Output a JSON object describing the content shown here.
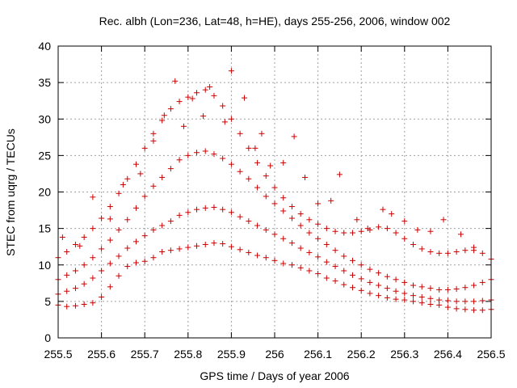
{
  "chart_data": {
    "type": "scatter",
    "title": "Rec. albh (Lon=236, Lat=48, h=HE), days 255-256, 2006, window 002",
    "xlabel": "GPS time / Days of year 2006",
    "ylabel": "STEC from uqrg / TECUs",
    "xlim": [
      255.5,
      256.5
    ],
    "ylim": [
      0,
      40
    ],
    "x_ticks": [
      255.5,
      255.6,
      255.7,
      255.8,
      255.9,
      256,
      256.1,
      256.2,
      256.3,
      256.4,
      256.5
    ],
    "x_tick_labels": [
      "255.5",
      "255.6",
      "255.7",
      "255.8",
      "255.9",
      "256",
      "256.1",
      "256.2",
      "256.3",
      "256.4",
      "256.5"
    ],
    "y_ticks": [
      0,
      5,
      10,
      15,
      20,
      25,
      30,
      35,
      40
    ],
    "y_tick_labels": [
      "0",
      "5",
      "10",
      "15",
      "20",
      "25",
      "30",
      "35",
      "40"
    ],
    "grid": true,
    "marker": "+",
    "color": "#cc0000",
    "series": [
      {
        "x": [
          255.5,
          255.52,
          255.54,
          255.56,
          255.58,
          255.6,
          255.62,
          255.64,
          255.66,
          255.68,
          255.7,
          255.72,
          255.74,
          255.76,
          255.78,
          255.8,
          255.82,
          255.84,
          255.86,
          255.88,
          255.9,
          255.92,
          255.94,
          255.96,
          255.98,
          256.0,
          256.02,
          256.04,
          256.06,
          256.08,
          256.1,
          256.12,
          256.14,
          256.16,
          256.18,
          256.2,
          256.22,
          256.24,
          256.26,
          256.28,
          256.3,
          256.32,
          256.34,
          256.36,
          256.38,
          256.4,
          256.42,
          256.44,
          256.46,
          256.48,
          256.5
        ],
        "y": [
          4.5,
          4.3,
          4.4,
          4.6,
          4.8,
          5.6,
          7.0,
          8.5,
          9.8,
          10.3,
          10.5,
          11.0,
          11.8,
          12.0,
          12.2,
          12.4,
          12.6,
          12.8,
          13.0,
          12.9,
          12.5,
          12.1,
          11.7,
          11.3,
          11.0,
          10.6,
          10.2,
          10.0,
          9.6,
          9.2,
          8.8,
          8.2,
          7.8,
          7.3,
          6.9,
          6.5,
          6.1,
          5.8,
          5.5,
          5.3,
          5.2,
          5.0,
          4.8,
          4.6,
          4.5,
          4.2,
          4.0,
          3.9,
          3.8,
          3.8,
          3.9
        ]
      },
      {
        "x": [
          255.5,
          255.52,
          255.54,
          255.56,
          255.58,
          255.6,
          255.62,
          255.64,
          255.66,
          255.68,
          255.7,
          255.72,
          255.74,
          255.76,
          255.78,
          255.8,
          255.82,
          255.84,
          255.86,
          255.88,
          255.9,
          255.92,
          255.94,
          255.96,
          255.98,
          256.0,
          256.02,
          256.04,
          256.06,
          256.08,
          256.1,
          256.12,
          256.14,
          256.16,
          256.18,
          256.2,
          256.22,
          256.24,
          256.26,
          256.28,
          256.3,
          256.32,
          256.34,
          256.36,
          256.38,
          256.4,
          256.42,
          256.44,
          256.46,
          256.48,
          256.5
        ],
        "y": [
          6.0,
          6.4,
          6.8,
          7.4,
          8.2,
          9.2,
          10.2,
          11.2,
          12.3,
          13.2,
          14.0,
          14.8,
          15.4,
          16.0,
          16.8,
          17.2,
          17.6,
          17.8,
          17.9,
          17.6,
          17.2,
          16.6,
          16.0,
          15.4,
          14.8,
          14.2,
          13.6,
          13.0,
          12.3,
          11.7,
          11.1,
          10.4,
          9.8,
          9.2,
          8.6,
          8.1,
          7.6,
          7.2,
          6.8,
          6.4,
          6.1,
          5.8,
          5.6,
          5.4,
          5.2,
          5.1,
          5.0,
          5.0,
          5.0,
          5.1,
          5.2
        ]
      },
      {
        "x": [
          255.5,
          255.52,
          255.54,
          255.56,
          255.58,
          255.6,
          255.62,
          255.64,
          255.66,
          255.68,
          255.7,
          255.72,
          255.74,
          255.76,
          255.78,
          255.8,
          255.82,
          255.84,
          255.86,
          255.88,
          255.9,
          255.92,
          255.94,
          255.96,
          255.98,
          256.0,
          256.02,
          256.04,
          256.06,
          256.08,
          256.1,
          256.12,
          256.14,
          256.16,
          256.18,
          256.2,
          256.22,
          256.24,
          256.26,
          256.28,
          256.3,
          256.32,
          256.34,
          256.36,
          256.38,
          256.4,
          256.42,
          256.44,
          256.46,
          256.48,
          256.5
        ],
        "y": [
          8.0,
          8.6,
          9.2,
          10.0,
          11.0,
          12.2,
          13.4,
          14.8,
          16.2,
          17.8,
          19.4,
          20.8,
          22.0,
          23.2,
          24.4,
          25.0,
          25.4,
          25.6,
          25.2,
          24.6,
          23.8,
          22.8,
          21.8,
          20.6,
          19.4,
          18.4,
          17.4,
          16.4,
          15.4,
          14.4,
          13.6,
          12.8,
          12.0,
          11.2,
          10.6,
          10.0,
          9.4,
          8.9,
          8.4,
          8.0,
          7.6,
          7.2,
          7.0,
          6.8,
          6.6,
          6.6,
          6.7,
          6.9,
          7.2,
          7.6,
          8.0
        ]
      },
      {
        "x": [
          255.5,
          255.52,
          255.54,
          255.56,
          255.58,
          255.6,
          255.62,
          255.64,
          255.66,
          255.68,
          255.7,
          255.72,
          255.74,
          255.76,
          255.78,
          255.8,
          255.82,
          255.84,
          255.86,
          255.88,
          255.9,
          255.92,
          255.94,
          255.96,
          255.98,
          256.0,
          256.02,
          256.04,
          256.06,
          256.08,
          256.1,
          256.12,
          256.14,
          256.16,
          256.18,
          256.2,
          256.22,
          256.24,
          256.26,
          256.28,
          256.3,
          256.32,
          256.34,
          256.36,
          256.38,
          256.4,
          256.42,
          256.44,
          256.46,
          256.48,
          256.5
        ],
        "y": [
          11.0,
          11.8,
          12.8,
          13.8,
          15.0,
          16.4,
          18.0,
          19.8,
          21.8,
          23.8,
          26.0,
          28.0,
          29.8,
          31.4,
          32.4,
          33.0,
          33.6,
          34.0,
          33.2,
          31.8,
          30.0,
          28.0,
          26.0,
          24.0,
          22.2,
          20.6,
          19.2,
          18.0,
          17.0,
          16.2,
          15.6,
          15.0,
          14.6,
          14.4,
          14.4,
          14.6,
          14.8,
          15.2,
          15.0,
          14.4,
          13.6,
          12.8,
          12.2,
          11.8,
          11.6,
          11.6,
          11.8,
          12.0,
          12.0,
          11.6,
          10.8
        ]
      },
      {
        "x": [
          255.51,
          255.55,
          255.58,
          255.62,
          255.65,
          255.69,
          255.72,
          255.745,
          255.77,
          255.79,
          255.81,
          255.835,
          255.85,
          255.885,
          255.9,
          255.93,
          255.955,
          255.97,
          255.99,
          256.02,
          256.045,
          256.07,
          256.1,
          256.13,
          256.15,
          256.19,
          256.215,
          256.25,
          256.27,
          256.3,
          256.33,
          256.36,
          256.39,
          256.43,
          256.46
        ],
        "y": [
          13.8,
          12.6,
          19.3,
          16.3,
          21.0,
          22.5,
          27.0,
          30.5,
          35.2,
          29.0,
          32.8,
          30.4,
          34.4,
          29.6,
          36.6,
          32.9,
          26.0,
          28.0,
          23.6,
          24.0,
          27.6,
          22.0,
          18.4,
          18.8,
          22.4,
          16.2,
          15.0,
          17.6,
          17.0,
          16.0,
          14.8,
          14.6,
          16.2,
          14.2,
          12.4
        ]
      }
    ]
  }
}
